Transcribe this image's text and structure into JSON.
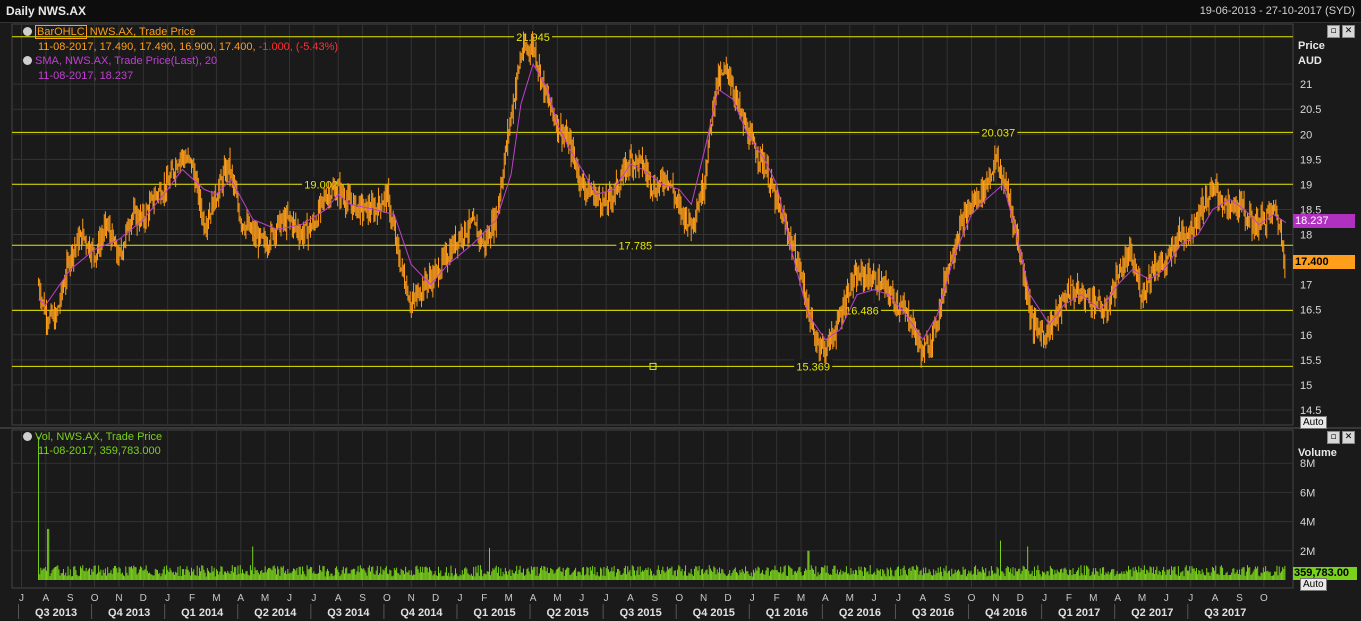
{
  "window": {
    "title": "Daily NWS.AX",
    "date_range": "19-06-2013 - 27-10-2017 (SYD)"
  },
  "price_panel": {
    "legend_ohlc_tag": "BarOHLC",
    "legend_ohlc_series": "NWS.AX, Trade Price",
    "legend_ohlc_values": "11-08-2017, 17.490, 17.490, 16.900, 17.400,",
    "legend_ohlc_change": "-1.000, (-5.43%)",
    "legend_sma_series": "SMA, NWS.AX, Trade Price(Last), 20",
    "legend_sma_values": "11-08-2017, 18.237",
    "axis_title": "Price",
    "axis_unit": "AUD",
    "auto_label": "Auto",
    "last_price_label": "17.400",
    "sma_label": "18.237",
    "colors": {
      "ohlc": "#ff9e1a",
      "sma": "#c040d0",
      "levels": "#e6e600",
      "change": "#ff3030"
    }
  },
  "volume_panel": {
    "legend_series": "Vol, NWS.AX, Trade Price",
    "legend_values": "11-08-2017, 359,783.000",
    "axis_title": "Volume",
    "last_label": "359,783.00",
    "auto_label": "Auto",
    "color": "#7ad11c"
  },
  "chart_data": {
    "type": "line",
    "title": "Daily NWS.AX",
    "x_unit": "months since 2013-06 (June 2013 = 0)",
    "price": {
      "ylim": [
        14.2,
        22.2
      ],
      "yticks": [
        14.5,
        15,
        15.5,
        16,
        16.5,
        17,
        17.5,
        18,
        18.5,
        19,
        19.5,
        20,
        20.5,
        21
      ],
      "yticklabels": [
        "14.5",
        "15",
        "15.5",
        "16",
        "16.5",
        "17",
        "17.5",
        "18",
        "18.5",
        "19",
        "19.5",
        "20",
        "20.5",
        "21"
      ],
      "series": [
        {
          "name": "NWS.AX, Trade Price",
          "style": "ohlc",
          "points": [
            [
              0.7,
              17.0
            ],
            [
              1,
              16.4
            ],
            [
              1.4,
              16.3
            ],
            [
              2,
              17.6
            ],
            [
              2.5,
              18.0
            ],
            [
              3,
              17.6
            ],
            [
              3.5,
              18.2
            ],
            [
              4,
              17.5
            ],
            [
              4.5,
              18.4
            ],
            [
              5,
              18.3
            ],
            [
              5.5,
              18.8
            ],
            [
              6,
              19.0
            ],
            [
              6.5,
              19.6
            ],
            [
              7,
              19.4
            ],
            [
              7.5,
              18.2
            ],
            [
              8,
              18.8
            ],
            [
              8.5,
              19.4
            ],
            [
              9,
              18.3
            ],
            [
              9.5,
              18.0
            ],
            [
              10,
              17.8
            ],
            [
              10.5,
              18.2
            ],
            [
              11,
              18.3
            ],
            [
              11.5,
              18.0
            ],
            [
              12,
              18.2
            ],
            [
              12.5,
              18.8
            ],
            [
              13,
              18.9
            ],
            [
              13.5,
              18.6
            ],
            [
              14,
              18.5
            ],
            [
              14.5,
              18.5
            ],
            [
              15,
              18.8
            ],
            [
              15.5,
              17.5
            ],
            [
              16,
              16.6
            ],
            [
              16.5,
              17.0
            ],
            [
              17,
              17.2
            ],
            [
              17.5,
              17.6
            ],
            [
              18,
              18.0
            ],
            [
              18.5,
              18.2
            ],
            [
              19,
              17.8
            ],
            [
              19.5,
              18.4
            ],
            [
              20,
              20.1
            ],
            [
              20.5,
              21.6
            ],
            [
              21,
              21.8
            ],
            [
              21.5,
              20.8
            ],
            [
              22,
              20.2
            ],
            [
              22.5,
              19.8
            ],
            [
              23,
              19.0
            ],
            [
              23.5,
              18.8
            ],
            [
              24,
              18.6
            ],
            [
              24.5,
              19.0
            ],
            [
              25,
              19.5
            ],
            [
              25.5,
              19.4
            ],
            [
              26,
              18.9
            ],
            [
              26.5,
              19.2
            ],
            [
              27,
              18.5
            ],
            [
              27.5,
              18.2
            ],
            [
              28,
              19.0
            ],
            [
              28.5,
              21.0
            ],
            [
              29,
              21.3
            ],
            [
              29.5,
              20.4
            ],
            [
              30,
              19.8
            ],
            [
              30.5,
              19.4
            ],
            [
              31,
              18.6
            ],
            [
              31.5,
              18.0
            ],
            [
              32,
              17.2
            ],
            [
              32.5,
              16.0
            ],
            [
              33,
              15.7
            ],
            [
              33.5,
              16.2
            ],
            [
              34,
              17.0
            ],
            [
              34.5,
              17.2
            ],
            [
              35,
              17.1
            ],
            [
              35.5,
              16.9
            ],
            [
              36,
              16.6
            ],
            [
              36.5,
              16.3
            ],
            [
              37,
              15.6
            ],
            [
              37.5,
              16.1
            ],
            [
              38,
              17.3
            ],
            [
              38.5,
              18.1
            ],
            [
              39,
              18.6
            ],
            [
              39.5,
              18.9
            ],
            [
              40,
              19.5
            ],
            [
              40.5,
              18.8
            ],
            [
              41,
              17.6
            ],
            [
              41.5,
              16.2
            ],
            [
              42,
              16.0
            ],
            [
              42.5,
              16.4
            ],
            [
              43,
              16.9
            ],
            [
              43.5,
              16.8
            ],
            [
              44,
              16.7
            ],
            [
              44.5,
              16.4
            ],
            [
              45,
              17.2
            ],
            [
              45.5,
              17.6
            ],
            [
              46,
              16.8
            ],
            [
              46.5,
              17.4
            ],
            [
              47,
              17.4
            ],
            [
              47.5,
              18.0
            ],
            [
              48,
              18.1
            ],
            [
              48.5,
              18.6
            ],
            [
              49,
              18.9
            ],
            [
              49.5,
              18.5
            ],
            [
              50,
              18.6
            ],
            [
              50.5,
              18.2
            ],
            [
              51,
              18.3
            ],
            [
              51.5,
              18.5
            ],
            [
              51.9,
              17.4
            ]
          ]
        },
        {
          "name": "SMA, NWS.AX, Trade Price(Last), 20",
          "style": "line",
          "points": [
            [
              0.7,
              16.7
            ],
            [
              1,
              16.6
            ],
            [
              2,
              17.3
            ],
            [
              3,
              17.7
            ],
            [
              4,
              17.9
            ],
            [
              5,
              18.3
            ],
            [
              6,
              18.9
            ],
            [
              6.6,
              19.3
            ],
            [
              7.5,
              18.9
            ],
            [
              8,
              18.8
            ],
            [
              8.6,
              19.1
            ],
            [
              9.5,
              18.3
            ],
            [
              10.5,
              18.1
            ],
            [
              11.5,
              18.2
            ],
            [
              12.5,
              18.5
            ],
            [
              13,
              18.8
            ],
            [
              13.5,
              18.6
            ],
            [
              14.5,
              18.5
            ],
            [
              15.3,
              18.4
            ],
            [
              16,
              17.4
            ],
            [
              16.8,
              17.0
            ],
            [
              17.5,
              17.4
            ],
            [
              18.5,
              17.8
            ],
            [
              19.5,
              18.3
            ],
            [
              20.1,
              19.2
            ],
            [
              20.5,
              20.6
            ],
            [
              21,
              21.4
            ],
            [
              21.6,
              20.9
            ],
            [
              22,
              20.2
            ],
            [
              22.5,
              19.7
            ],
            [
              23,
              19.3
            ],
            [
              23.6,
              18.8
            ],
            [
              24.3,
              18.9
            ],
            [
              25,
              19.4
            ],
            [
              25.5,
              19.3
            ],
            [
              26.3,
              19.0
            ],
            [
              27,
              18.9
            ],
            [
              27.5,
              18.6
            ],
            [
              28.1,
              19.8
            ],
            [
              28.6,
              20.9
            ],
            [
              29.2,
              20.7
            ],
            [
              29.8,
              20.0
            ],
            [
              30.5,
              19.5
            ],
            [
              31,
              19.0
            ],
            [
              31.6,
              17.7
            ],
            [
              32.3,
              16.4
            ],
            [
              33,
              15.9
            ],
            [
              33.6,
              16.1
            ],
            [
              34.3,
              16.8
            ],
            [
              35,
              16.9
            ],
            [
              35.6,
              16.8
            ],
            [
              36.3,
              16.4
            ],
            [
              37,
              15.9
            ],
            [
              37.6,
              16.4
            ],
            [
              38.3,
              17.6
            ],
            [
              39,
              18.4
            ],
            [
              39.6,
              18.7
            ],
            [
              40.3,
              19.0
            ],
            [
              40.8,
              18.1
            ],
            [
              41.4,
              16.8
            ],
            [
              42.2,
              16.2
            ],
            [
              42.8,
              16.6
            ],
            [
              43.5,
              16.8
            ],
            [
              44.3,
              16.5
            ],
            [
              45,
              17.0
            ],
            [
              45.6,
              17.3
            ],
            [
              46.3,
              17.1
            ],
            [
              46.9,
              17.3
            ],
            [
              47.6,
              17.8
            ],
            [
              48.3,
              18.0
            ],
            [
              48.9,
              18.5
            ],
            [
              49.6,
              18.7
            ],
            [
              50.2,
              18.5
            ],
            [
              50.8,
              18.2
            ],
            [
              51.4,
              18.4
            ],
            [
              51.9,
              18.237
            ]
          ]
        }
      ],
      "levels": [
        {
          "y": 21.945,
          "label": "21.945"
        },
        {
          "y": 20.037,
          "label": "20.037"
        },
        {
          "y": 19.002,
          "label": "19.002"
        },
        {
          "y": 17.785,
          "label": "17.785"
        },
        {
          "y": 16.486,
          "label": "16.486"
        },
        {
          "y": 15.369,
          "label": "15.369"
        }
      ]
    },
    "volume": {
      "ylim": [
        0,
        10000000
      ],
      "yticks": [
        2000000,
        4000000,
        6000000,
        8000000
      ],
      "yticklabels": [
        "2M",
        "4M",
        "6M",
        "8M"
      ],
      "spikes": [
        [
          0.7,
          9800000
        ],
        [
          1.1,
          3500000
        ],
        [
          9.5,
          2300000
        ],
        [
          19.2,
          2200000
        ],
        [
          32.3,
          2000000
        ],
        [
          40.2,
          2700000
        ],
        [
          41.3,
          2300000
        ]
      ],
      "baseline": 600000,
      "last": 359783
    },
    "month_labels": [
      "J",
      "A",
      "S",
      "O",
      "N",
      "D",
      "J",
      "F",
      "M",
      "A",
      "M",
      "J",
      "J",
      "A",
      "S",
      "O",
      "N",
      "D",
      "J",
      "F",
      "M",
      "A",
      "M",
      "J",
      "J",
      "A",
      "S",
      "O",
      "N",
      "D",
      "J",
      "F",
      "M",
      "A",
      "M",
      "J",
      "J",
      "A",
      "S",
      "O",
      "N",
      "D",
      "J",
      "F",
      "M",
      "A",
      "M",
      "J",
      "J",
      "A",
      "S",
      "O"
    ],
    "quarter_labels": [
      "Q3 2013",
      "Q4 2013",
      "Q1 2014",
      "Q2 2014",
      "Q3 2014",
      "Q4 2014",
      "Q1 2015",
      "Q2 2015",
      "Q3 2015",
      "Q4 2015",
      "Q1 2016",
      "Q2 2016",
      "Q3 2016",
      "Q4 2016",
      "Q1 2017",
      "Q2 2017",
      "Q3 2017"
    ]
  }
}
